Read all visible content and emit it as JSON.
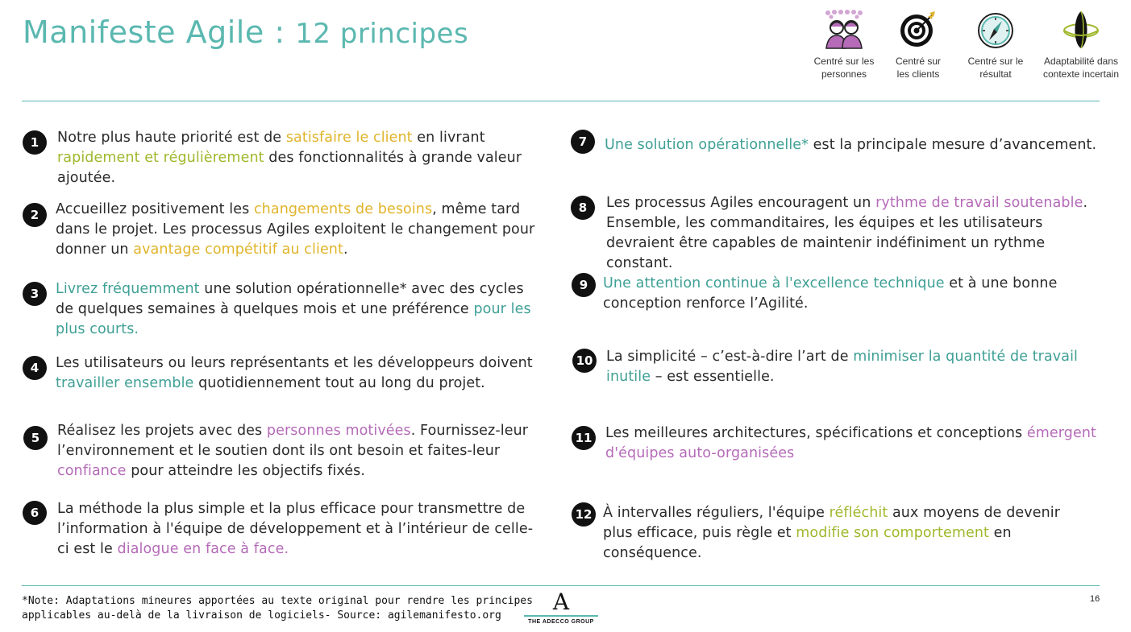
{
  "header": {
    "title_main": "Manifeste Agile : ",
    "title_num": "12 principes"
  },
  "legend": [
    {
      "label": "Centré sur les\npersonnes",
      "icon": "people-icon"
    },
    {
      "label": "Centré sur\nles clients",
      "icon": "target-icon"
    },
    {
      "label": "Centré sur le\nrésultat",
      "icon": "compass-icon"
    },
    {
      "label": "Adaptabilité dans\ncontexte incertain",
      "icon": "chameleon-icon"
    }
  ],
  "colors": {
    "teal": "#3fa095",
    "yellow": "#e0b42a",
    "green": "#9fb82c",
    "purple": "#b56bb8",
    "rule": "#5bb8b0"
  },
  "principles": [
    {
      "num": "1",
      "segments": [
        {
          "t": "Notre plus haute priorité est de "
        },
        {
          "t": "satisfaire le client",
          "c": "yellow"
        },
        {
          "t": " en livrant "
        },
        {
          "t": "rapidement et régulièrement",
          "c": "green"
        },
        {
          "t": " des fonctionnalités à grande valeur ajoutée."
        }
      ]
    },
    {
      "num": "2",
      "segments": [
        {
          "t": "Accueillez positivement les "
        },
        {
          "t": "changements de besoins",
          "c": "yellow"
        },
        {
          "t": ", même tard dans le projet. Les processus Agiles exploitent le changement pour donner un "
        },
        {
          "t": "avantage compétitif au client",
          "c": "yellow"
        },
        {
          "t": "."
        }
      ]
    },
    {
      "num": "3",
      "segments": [
        {
          "t": "Livrez fréquemment",
          "c": "teal"
        },
        {
          "t": " une solution opérationnelle* avec des cycles de quelques semaines à quelques mois et une préférence "
        },
        {
          "t": "pour les plus courts.",
          "c": "teal"
        }
      ]
    },
    {
      "num": "4",
      "segments": [
        {
          "t": "Les utilisateurs ou leurs représentants et les développeurs doivent "
        },
        {
          "t": "travailler ensemble",
          "c": "teal"
        },
        {
          "t": " quotidiennement tout au long du projet."
        }
      ]
    },
    {
      "num": "5",
      "segments": [
        {
          "t": "Réalisez les projets avec des "
        },
        {
          "t": "personnes motivées",
          "c": "purple"
        },
        {
          "t": ". Fournissez-leur l’environnement et le soutien dont ils ont besoin et faites-leur "
        },
        {
          "t": "confiance",
          "c": "purple"
        },
        {
          "t": " pour atteindre les objectifs fixés."
        }
      ]
    },
    {
      "num": "6",
      "segments": [
        {
          "t": "La méthode la plus simple et la plus efficace pour transmettre de l’information à l'équipe de développement et à l’intérieur de celle-ci est le "
        },
        {
          "t": "dialogue en face à face.",
          "c": "purple"
        }
      ]
    },
    {
      "num": "7",
      "segments": [
        {
          "t": "Une solution opérationnelle*",
          "c": "teal"
        },
        {
          "t": " est la principale mesure d’avancement."
        }
      ]
    },
    {
      "num": "8",
      "segments": [
        {
          "t": "Les processus Agiles encouragent un "
        },
        {
          "t": "rythme de travail soutenable",
          "c": "purple"
        },
        {
          "t": ". Ensemble, les commanditaires, les équipes et les utilisateurs devraient être capables de maintenir indéfiniment un rythme constant."
        }
      ]
    },
    {
      "num": "9",
      "segments": [
        {
          "t": "Une attention continue à l'excellence technique",
          "c": "teal"
        },
        {
          "t": " et à une bonne conception renforce l’Agilité."
        }
      ]
    },
    {
      "num": "10",
      "segments": [
        {
          "t": "La simplicité – c’est-à-dire l’art de "
        },
        {
          "t": "minimiser la quantité de travail inutile",
          "c": "teal"
        },
        {
          "t": " – est essentielle."
        }
      ]
    },
    {
      "num": "11",
      "segments": [
        {
          "t": "Les meilleures architectures, spécifications et conceptions "
        },
        {
          "t": "émergent d'équipes auto-organisées",
          "c": "purple"
        }
      ]
    },
    {
      "num": "12",
      "segments": [
        {
          "t": "À intervalles réguliers, l'équipe "
        },
        {
          "t": "réfléchit",
          "c": "green"
        },
        {
          "t": " aux moyens de devenir plus efficace, puis règle et "
        },
        {
          "t": "modifie son comportement",
          "c": "green"
        },
        {
          "t": " en conséquence."
        }
      ]
    }
  ],
  "footer": {
    "note": "*Note: Adaptations mineures apportées au texte original pour rendre les principes\napplicables au-delà de la livraison de logiciels- Source: agilemanifesto.org",
    "logo_mark": "A",
    "logo_name": "THE ADECCO GROUP",
    "page": "16"
  }
}
